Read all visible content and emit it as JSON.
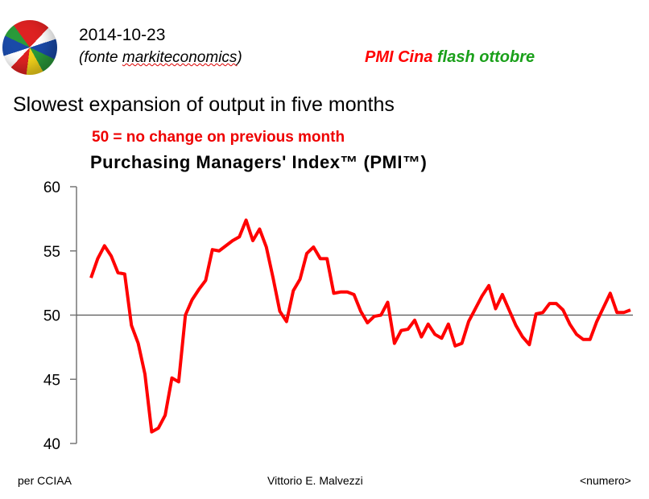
{
  "header": {
    "date": "2014-10-23",
    "source_prefix": "(fonte ",
    "source_name": "markiteconomics",
    "source_suffix": ")",
    "title_part1": "PMI Cina",
    "title_part2": "flash ottobre",
    "title_color1": "#ff0000",
    "title_color2": "#1aa01a"
  },
  "footer": {
    "left": "per CCIAA",
    "center": "Vittorio E. Malvezzi",
    "right": "<numero>"
  },
  "chart_data": {
    "type": "line",
    "headline": "Slowest expansion of output in five months",
    "note": "50 =  no change on previous month",
    "title": "Purchasing Managers' Index™ (PMI™)",
    "xlabel": "",
    "ylabel": "",
    "ylim": [
      40,
      60
    ],
    "yticks": [
      60,
      55,
      50,
      45,
      40
    ],
    "reference_line": 50,
    "series": [
      {
        "name": "PMI",
        "color": "#ff0000",
        "values": [
          52.9,
          54.4,
          55.4,
          54.6,
          53.3,
          53.2,
          49.2,
          47.8,
          45.4,
          40.9,
          41.2,
          42.2,
          45.1,
          44.8,
          50.0,
          51.2,
          52.0,
          52.7,
          55.1,
          55.0,
          55.4,
          55.8,
          56.1,
          57.4,
          55.8,
          56.7,
          55.3,
          52.9,
          50.3,
          49.5,
          51.9,
          52.8,
          54.8,
          55.3,
          54.4,
          54.4,
          51.7,
          51.8,
          51.8,
          51.6,
          50.3,
          49.4,
          49.9,
          50.0,
          51.0,
          47.8,
          48.8,
          48.9,
          49.6,
          48.3,
          49.3,
          48.5,
          48.2,
          49.3,
          47.6,
          47.8,
          49.5,
          50.5,
          51.5,
          52.3,
          50.5,
          51.6,
          50.4,
          49.2,
          48.3,
          47.7,
          50.1,
          50.2,
          50.9,
          50.9,
          50.4,
          49.3,
          48.5,
          48.1,
          48.1,
          49.5,
          50.6,
          51.7,
          50.2,
          50.2,
          50.4
        ]
      }
    ]
  }
}
